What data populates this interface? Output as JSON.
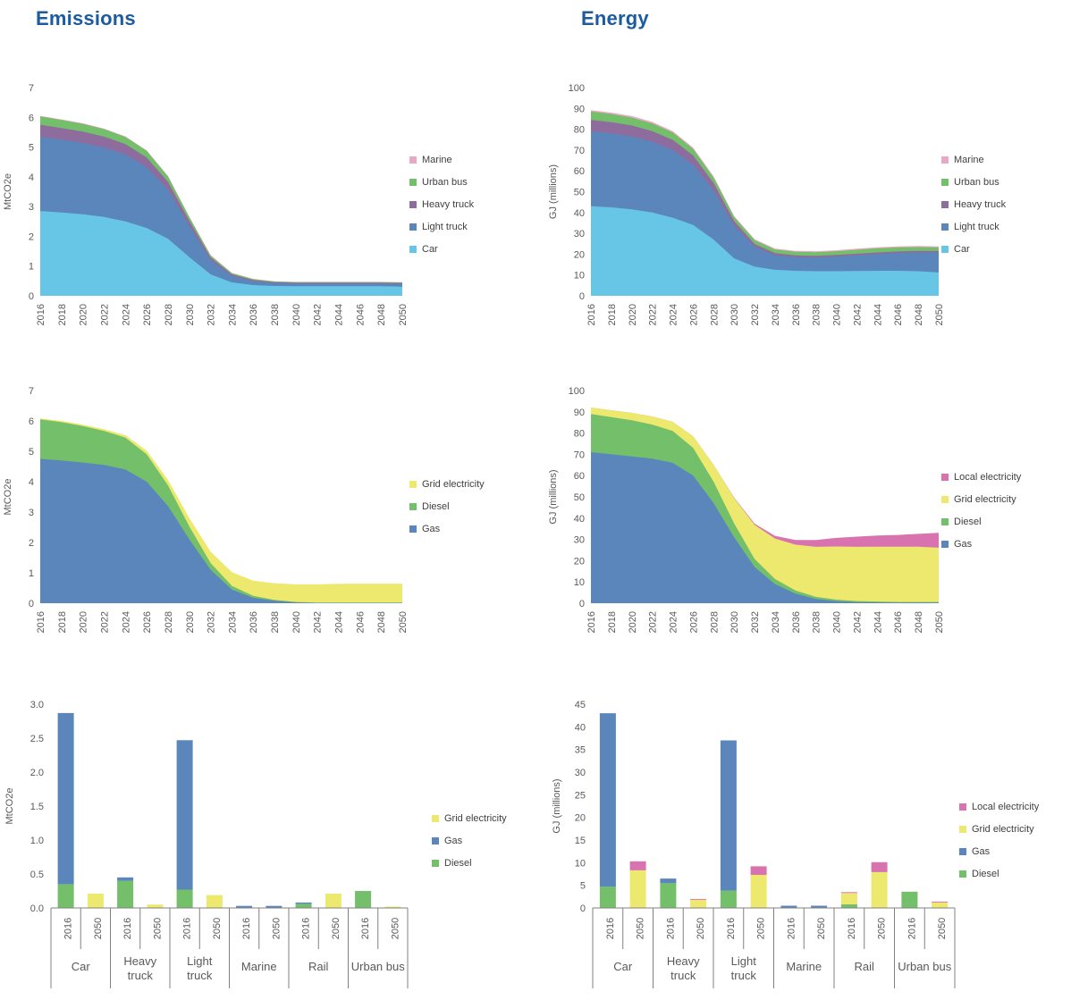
{
  "page": {
    "titles": [
      {
        "text": "Emissions"
      },
      {
        "text": "Energy"
      }
    ]
  },
  "colors": {
    "title_blue": "#1b5b9e",
    "car": "#67c5e6",
    "light_truck": "#5b86bb",
    "heavy_truck": "#8e6d9e",
    "urban_bus": "#73bf6a",
    "marine": "#e9a9c6",
    "gas": "#5b86bb",
    "diesel": "#73bf6a",
    "grid_electricity": "#ece96e",
    "local_electricity": "#d973b0"
  },
  "chart_data": [
    {
      "id": "emissions-by-mode",
      "type": "area",
      "ylabel": "MtCO2e",
      "ylim": [
        0,
        7
      ],
      "ytick_labels": [
        "0",
        "1",
        "2",
        "3",
        "4",
        "5",
        "6",
        "7"
      ],
      "x_labels": [
        "2016",
        "2018",
        "2020",
        "2022",
        "2024",
        "2026",
        "2028",
        "2030",
        "2032",
        "2034",
        "2036",
        "2038",
        "2040",
        "2042",
        "2044",
        "2046",
        "2048",
        "2050"
      ],
      "legend_position": "right",
      "grid": false,
      "series": [
        {
          "name": "Car",
          "color": "#67c5e6",
          "values": [
            2.85,
            2.8,
            2.74,
            2.65,
            2.5,
            2.28,
            1.92,
            1.3,
            0.72,
            0.45,
            0.36,
            0.33,
            0.32,
            0.32,
            0.32,
            0.32,
            0.32,
            0.31
          ]
        },
        {
          "name": "Light truck",
          "color": "#5b86bb",
          "values": [
            2.5,
            2.45,
            2.4,
            2.33,
            2.25,
            2.05,
            1.65,
            1.05,
            0.48,
            0.22,
            0.13,
            0.1,
            0.09,
            0.09,
            0.09,
            0.09,
            0.09,
            0.09
          ]
        },
        {
          "name": "Heavy truck",
          "color": "#8e6d9e",
          "values": [
            0.4,
            0.39,
            0.38,
            0.37,
            0.35,
            0.32,
            0.26,
            0.17,
            0.09,
            0.05,
            0.04,
            0.03,
            0.03,
            0.03,
            0.03,
            0.03,
            0.03,
            0.03
          ]
        },
        {
          "name": "Urban bus",
          "color": "#73bf6a",
          "values": [
            0.28,
            0.27,
            0.26,
            0.25,
            0.24,
            0.22,
            0.18,
            0.12,
            0.06,
            0.04,
            0.03,
            0.02,
            0.02,
            0.02,
            0.02,
            0.02,
            0.02,
            0.02
          ]
        },
        {
          "name": "Marine",
          "color": "#e9a9c6",
          "values": [
            0.02,
            0.02,
            0.02,
            0.02,
            0.02,
            0.02,
            0.02,
            0.02,
            0.02,
            0.01,
            0.01,
            0.01,
            0.01,
            0.01,
            0.01,
            0.01,
            0.01,
            0.01
          ]
        }
      ]
    },
    {
      "id": "energy-by-mode",
      "type": "area",
      "ylabel": "GJ (millions)",
      "ylim": [
        0,
        100
      ],
      "ytick_labels": [
        "0",
        "10",
        "20",
        "30",
        "40",
        "50",
        "60",
        "70",
        "80",
        "90",
        "100"
      ],
      "x_labels": [
        "2016",
        "2018",
        "2020",
        "2022",
        "2024",
        "2026",
        "2028",
        "2030",
        "2032",
        "2034",
        "2036",
        "2038",
        "2040",
        "2042",
        "2044",
        "2046",
        "2048",
        "2050"
      ],
      "legend_position": "right",
      "grid": false,
      "series": [
        {
          "name": "Car",
          "color": "#67c5e6",
          "values": [
            43,
            42.5,
            41.5,
            40,
            37.5,
            34,
            27,
            18,
            14,
            12.5,
            12,
            11.8,
            11.8,
            11.9,
            12,
            12,
            11.8,
            11.2
          ]
        },
        {
          "name": "Light truck",
          "color": "#5b86bb",
          "values": [
            36,
            35.5,
            35,
            34,
            32.5,
            29,
            23.5,
            15.5,
            9.5,
            7.0,
            6.6,
            6.6,
            7.0,
            7.5,
            8.0,
            8.5,
            9.0,
            9.5
          ]
        },
        {
          "name": "Heavy truck",
          "color": "#8e6d9e",
          "values": [
            5.5,
            5.4,
            5.3,
            5.1,
            4.9,
            4.4,
            3.6,
            2.4,
            1.4,
            1.0,
            0.8,
            0.8,
            0.8,
            0.8,
            0.8,
            0.8,
            0.8,
            0.8
          ]
        },
        {
          "name": "Urban bus",
          "color": "#73bf6a",
          "values": [
            4.0,
            3.9,
            3.8,
            3.7,
            3.5,
            3.1,
            2.6,
            1.9,
            1.8,
            1.7,
            1.7,
            1.7,
            1.8,
            1.9,
            2.0,
            1.9,
            1.8,
            1.7
          ]
        },
        {
          "name": "Marine",
          "color": "#e9a9c6",
          "values": [
            0.7,
            0.7,
            0.7,
            0.7,
            0.7,
            0.6,
            0.6,
            0.5,
            0.5,
            0.5,
            0.5,
            0.5,
            0.5,
            0.5,
            0.5,
            0.5,
            0.5,
            0.5
          ]
        }
      ]
    },
    {
      "id": "emissions-by-fuel",
      "type": "area",
      "ylabel": "MtCO2e",
      "ylim": [
        0,
        7
      ],
      "ytick_labels": [
        "0",
        "1",
        "2",
        "3",
        "4",
        "5",
        "6",
        "7"
      ],
      "x_labels": [
        "2016",
        "2018",
        "2020",
        "2022",
        "2024",
        "2026",
        "2028",
        "2030",
        "2032",
        "2034",
        "2036",
        "2038",
        "2040",
        "2042",
        "2044",
        "2046",
        "2048",
        "2050"
      ],
      "legend_position": "right",
      "grid": false,
      "series": [
        {
          "name": "Gas",
          "color": "#5b86bb",
          "values": [
            4.75,
            4.7,
            4.63,
            4.55,
            4.4,
            4.0,
            3.2,
            2.1,
            1.1,
            0.45,
            0.18,
            0.08,
            0.03,
            0.01,
            0.01,
            0.01,
            0.01,
            0.01
          ]
        },
        {
          "name": "Diesel",
          "color": "#73bf6a",
          "values": [
            1.3,
            1.26,
            1.2,
            1.12,
            1.05,
            0.9,
            0.68,
            0.42,
            0.22,
            0.12,
            0.06,
            0.03,
            0.01,
            0.01,
            0.01,
            0.01,
            0.01,
            0.01
          ]
        },
        {
          "name": "Grid electricity",
          "color": "#ece96e",
          "values": [
            0.03,
            0.04,
            0.05,
            0.06,
            0.08,
            0.12,
            0.18,
            0.28,
            0.38,
            0.45,
            0.5,
            0.55,
            0.58,
            0.6,
            0.62,
            0.62,
            0.62,
            0.62
          ]
        }
      ]
    },
    {
      "id": "energy-by-fuel",
      "type": "area",
      "ylabel": "GJ (millions)",
      "ylim": [
        0,
        100
      ],
      "ytick_labels": [
        "0",
        "10",
        "20",
        "30",
        "40",
        "50",
        "60",
        "70",
        "80",
        "90",
        "100"
      ],
      "x_labels": [
        "2016",
        "2018",
        "2020",
        "2022",
        "2024",
        "2026",
        "2028",
        "2030",
        "2032",
        "2034",
        "2036",
        "2038",
        "2040",
        "2042",
        "2044",
        "2046",
        "2048",
        "2050"
      ],
      "legend_position": "right",
      "grid": false,
      "series": [
        {
          "name": "Gas",
          "color": "#5b86bb",
          "values": [
            71,
            70,
            69,
            68,
            66,
            60,
            47,
            31,
            17,
            9,
            4.5,
            2,
            1,
            0.5,
            0.4,
            0.3,
            0.3,
            0.3
          ]
        },
        {
          "name": "Diesel",
          "color": "#73bf6a",
          "values": [
            18,
            17.5,
            17,
            16,
            15,
            13,
            10,
            6.5,
            3.8,
            2.4,
            1.5,
            1.0,
            0.7,
            0.5,
            0.4,
            0.3,
            0.3,
            0.3
          ]
        },
        {
          "name": "Grid electricity",
          "color": "#ece96e",
          "values": [
            3,
            3.2,
            3.5,
            3.8,
            4.3,
            5.5,
            8,
            12,
            16,
            19,
            21.5,
            23.5,
            25,
            25.5,
            25.8,
            26,
            26,
            25.5
          ]
        },
        {
          "name": "Local electricity",
          "color": "#d973b0",
          "values": [
            0,
            0,
            0,
            0,
            0,
            0,
            0,
            0.2,
            0.6,
            1.3,
            2.2,
            3.2,
            4.0,
            4.8,
            5.2,
            5.5,
            6.0,
            7.0
          ]
        }
      ]
    },
    {
      "id": "emissions-by-fuel-2016-vs-2050",
      "type": "bar",
      "ylabel": "MtCO2e",
      "ylim": [
        0,
        3
      ],
      "ytick_labels": [
        "0.0",
        "0.5",
        "1.0",
        "1.5",
        "2.0",
        "2.5",
        "3.0"
      ],
      "bar_labels": [
        "2016",
        "2050"
      ],
      "groups": [
        {
          "lines": [
            "Car"
          ]
        },
        {
          "lines": [
            "Heavy",
            "truck"
          ]
        },
        {
          "lines": [
            "Light",
            "truck"
          ]
        },
        {
          "lines": [
            "Marine"
          ]
        },
        {
          "lines": [
            "Rail"
          ]
        },
        {
          "lines": [
            "Urban bus"
          ]
        }
      ],
      "legend_position": "right",
      "grid": false,
      "series": [
        {
          "name": "Diesel",
          "color": "#73bf6a",
          "values": [
            0.35,
            0,
            0.4,
            0,
            0.27,
            0,
            0,
            0,
            0.06,
            0,
            0.25,
            0
          ]
        },
        {
          "name": "Gas",
          "color": "#5b86bb",
          "values": [
            2.52,
            0,
            0.05,
            0,
            2.2,
            0,
            0.03,
            0.03,
            0.02,
            0,
            0,
            0
          ]
        },
        {
          "name": "Grid electricity",
          "color": "#ece96e",
          "values": [
            0,
            0.21,
            0,
            0.05,
            0,
            0.19,
            0,
            0,
            0,
            0.21,
            0,
            0.02
          ]
        }
      ]
    },
    {
      "id": "energy-by-fuel-2016-vs-2050",
      "type": "bar",
      "ylabel": "GJ (millions)",
      "ylim": [
        0,
        45
      ],
      "ytick_labels": [
        "0",
        "5",
        "10",
        "15",
        "20",
        "25",
        "30",
        "35",
        "40",
        "45"
      ],
      "bar_labels": [
        "2016",
        "2050"
      ],
      "groups": [
        {
          "lines": [
            "Car"
          ]
        },
        {
          "lines": [
            "Heavy",
            "truck"
          ]
        },
        {
          "lines": [
            "Light",
            "truck"
          ]
        },
        {
          "lines": [
            "Marine"
          ]
        },
        {
          "lines": [
            "Rail"
          ]
        },
        {
          "lines": [
            "Urban bus"
          ]
        }
      ],
      "legend_position": "right",
      "grid": false,
      "series": [
        {
          "name": "Diesel",
          "color": "#73bf6a",
          "values": [
            4.7,
            0,
            5.5,
            0,
            3.8,
            0,
            0,
            0,
            0.8,
            0,
            3.6,
            0
          ]
        },
        {
          "name": "Gas",
          "color": "#5b86bb",
          "values": [
            38.3,
            0,
            1.0,
            0,
            33.2,
            0,
            0.5,
            0.5,
            0,
            0,
            0,
            0
          ]
        },
        {
          "name": "Grid electricity",
          "color": "#ece96e",
          "values": [
            0,
            8.3,
            0,
            1.8,
            0,
            7.3,
            0,
            0,
            2.5,
            7.9,
            0,
            1.2
          ]
        },
        {
          "name": "Local electricity",
          "color": "#d973b0",
          "values": [
            0,
            2.0,
            0,
            0.2,
            0,
            1.9,
            0,
            0,
            0.2,
            2.2,
            0,
            0.2
          ]
        }
      ]
    }
  ]
}
